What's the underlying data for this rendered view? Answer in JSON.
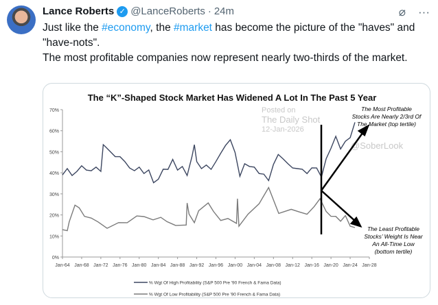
{
  "post": {
    "author_name": "Lance Roberts",
    "handle": "@LanceRoberts",
    "separator": "·",
    "time": "24m",
    "text_parts": [
      "Just like the ",
      "#economy",
      ", the ",
      "#market",
      " has become the picture of the \"haves\" and \"have-nots\"."
    ],
    "text_line2": "The most profitable companies now represent nearly two-thirds of the market.",
    "icons": [
      "verified-badge-icon",
      "grok-icon",
      "more-icon"
    ]
  },
  "chart_data": {
    "type": "line",
    "title": "The “K”-Shaped Stock Market Has Widened A Lot In The Past 5 Year",
    "ylim": [
      0,
      70
    ],
    "yticks": [
      "0%",
      "10%",
      "20%",
      "30%",
      "40%",
      "50%",
      "60%",
      "70%"
    ],
    "xlim": [
      1964,
      2028
    ],
    "xticks": [
      "Jan-64",
      "Jan-68",
      "Jan-72",
      "Jan-76",
      "Jan-80",
      "Jan-84",
      "Jan-88",
      "Jan-92",
      "Jan-96",
      "Jan-00",
      "Jan-04",
      "Jan-08",
      "Jan-12",
      "Jan-16",
      "Jan-20",
      "Jan-24",
      "Jan-28"
    ],
    "series": [
      {
        "name": "% Wgt Of High Profitability (S&P 500 Pre '90 French & Fama Data)",
        "color": "#3c4660",
        "x": [
          1964,
          1965,
          1966,
          1967,
          1968,
          1969,
          1970,
          1971,
          1972,
          1972.5,
          1973,
          1974,
          1975,
          1976,
          1977,
          1978,
          1979,
          1980,
          1981,
          1982,
          1983,
          1984,
          1985,
          1986,
          1987,
          1988,
          1989,
          1990,
          1991,
          1991.5,
          1992,
          1993,
          1994,
          1995,
          1996,
          1997,
          1998,
          1999,
          2000,
          2001,
          2002,
          2003,
          2004,
          2005,
          2006,
          2007,
          2008,
          2009,
          2010,
          2011,
          2012,
          2013,
          2014,
          2015,
          2016,
          2017,
          2018,
          2019,
          2020,
          2021,
          2022,
          2023,
          2024,
          2025
        ],
        "y": [
          39,
          42,
          38,
          41,
          43,
          42,
          41,
          42,
          41,
          53,
          53,
          50,
          47,
          48,
          45,
          43,
          41,
          42,
          40,
          41,
          36,
          37,
          41,
          42,
          46,
          42,
          43,
          38,
          48,
          53,
          46,
          42,
          43,
          42,
          45,
          50,
          53,
          55,
          50,
          38,
          45,
          43,
          42,
          40,
          39,
          37,
          44,
          48,
          47,
          44,
          43,
          42,
          41,
          40,
          42,
          43,
          38,
          46,
          52,
          57,
          52,
          55,
          56,
          64
        ]
      },
      {
        "name": "% Wgt Of Low Profitability (S&P 500 Pre '90 French & Fama Data)",
        "color": "#7a7a7a",
        "x": [
          1964,
          1965,
          1965.4,
          1966.6,
          1967.5,
          1968.6,
          1970,
          1971.4,
          1973.3,
          1975.7,
          1977.5,
          1979.5,
          1981,
          1982.9,
          1984.5,
          1985.8,
          1987.6,
          1989.8,
          1990,
          1990.4,
          1991.5,
          1992.4,
          1994.4,
          1995.5,
          1997,
          1998.5,
          2000.3,
          2000.5,
          2000.8,
          2002.7,
          2005,
          2007,
          2009.1,
          2011.7,
          2013.5,
          2015,
          2016.5,
          2017.7,
          2019,
          2020,
          2021,
          2022,
          2023,
          2024,
          2025
        ],
        "y": [
          13,
          12.5,
          16,
          25,
          23,
          20,
          18.5,
          16,
          14,
          16,
          17,
          19.5,
          18.5,
          18,
          18.5,
          17.5,
          15,
          14.5,
          26,
          20,
          17,
          22,
          25,
          22,
          17,
          19,
          16,
          27,
          15,
          20,
          26,
          33,
          20,
          23,
          21,
          21,
          24,
          27,
          22,
          19,
          20,
          17,
          19,
          15,
          14
        ]
      }
    ],
    "annotations": {
      "top": [
        "The Most Profitable",
        "Stocks Are Nearly 2/3rd Of",
        "The Market (top tertile)"
      ],
      "bottom": [
        "The Least Profitable",
        "Stocks’ Weight Is Near",
        "An All-Time Low",
        "(bottom tertile)"
      ]
    },
    "watermark": [
      "Posted on",
      "The Daily Shot",
      "12-Jan-2026",
      "@SoberLook"
    ],
    "legend_placement": "bottom",
    "grid": false
  }
}
